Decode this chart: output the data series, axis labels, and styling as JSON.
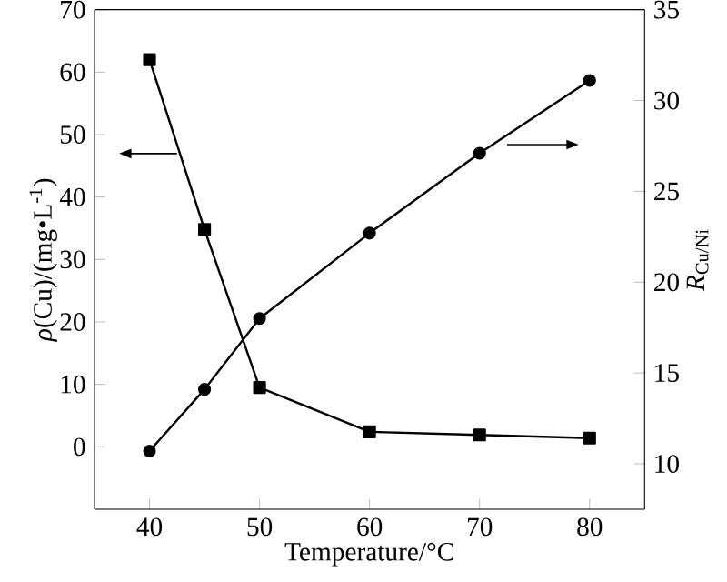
{
  "chart_data": {
    "type": "line",
    "xlabel": "Temperature/°C",
    "ylabel": "*ρ*(Cu)/(mg•L$^{-1}$)",
    "y2label": "*R*$_{Cu/Ni}$",
    "x": [
      40,
      45,
      50,
      60,
      70,
      80
    ],
    "series": [
      {
        "color": "#000000",
        "marker": "square",
        "values": [
          62,
          34.8,
          9.5,
          2.4,
          1.9,
          1.4
        ]
      },
      {
        "color": "#000000",
        "marker": "circle",
        "axis": "y2",
        "values": [
          10.7,
          14.1,
          18.0,
          22.7,
          27.1,
          31.1
        ]
      }
    ],
    "xlim": [
      35,
      85
    ],
    "xticks": [
      40,
      50,
      60,
      70,
      80
    ],
    "ylim": [
      -10,
      70
    ],
    "yticks": [
      0,
      10,
      20,
      30,
      40,
      50,
      60,
      70
    ],
    "y2lim": [
      7.5,
      35
    ],
    "y2ticks": [
      10,
      15,
      20,
      25,
      30,
      35
    ],
    "line_style": "solid"
  }
}
